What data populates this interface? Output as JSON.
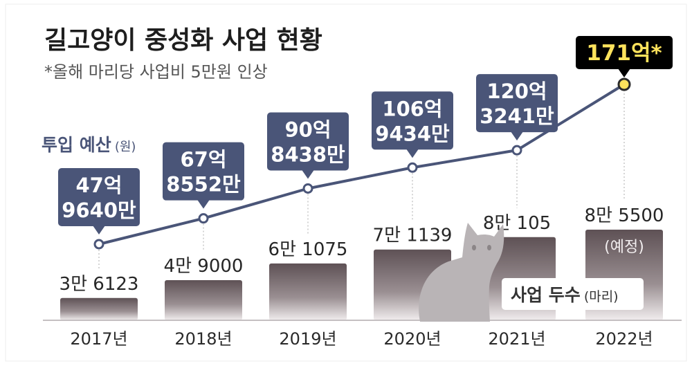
{
  "chart_data": {
    "type": "bar+line",
    "title": "길고양이 중성화 사업 현황",
    "subtitle": "*올해 마리당 사업비 5만원 인상",
    "categories": [
      "2017년",
      "2018년",
      "2019년",
      "2020년",
      "2021년",
      "2022년"
    ],
    "bar_series": {
      "name": "사업 두수",
      "unit": "(마리)",
      "values": [
        36123,
        49000,
        61075,
        71139,
        80105,
        85500
      ],
      "labels": [
        "3만 6123",
        "4만 9000",
        "6만 1075",
        "7만 1139",
        "8만 105",
        "8만 5500"
      ],
      "notes": [
        "",
        "",
        "",
        "",
        "",
        "(예정)"
      ]
    },
    "line_series": {
      "name": "투입 예산",
      "unit": "(원)",
      "values": [
        4796400000,
        6785520000,
        9084380000,
        10694340000,
        12032410000,
        17100000000
      ],
      "labels": [
        [
          "47억",
          "9640만"
        ],
        [
          "67억",
          "8552만"
        ],
        [
          "90억",
          "8438만"
        ],
        [
          "106억",
          "9434만"
        ],
        [
          "120억",
          "3241만"
        ],
        [
          "171억*"
        ]
      ]
    },
    "colors": {
      "bar_top": "#5e5155",
      "bar_bottom": "#f1edee",
      "line": "#4a5578",
      "callout": "#4a5578",
      "highlight_fill": "#000000",
      "highlight_text": "#ffe35c",
      "highlight_dot": "#ffe35c",
      "title": "#1e1e1e",
      "muted_text": "#555555",
      "cat": "#b3adaf"
    }
  }
}
